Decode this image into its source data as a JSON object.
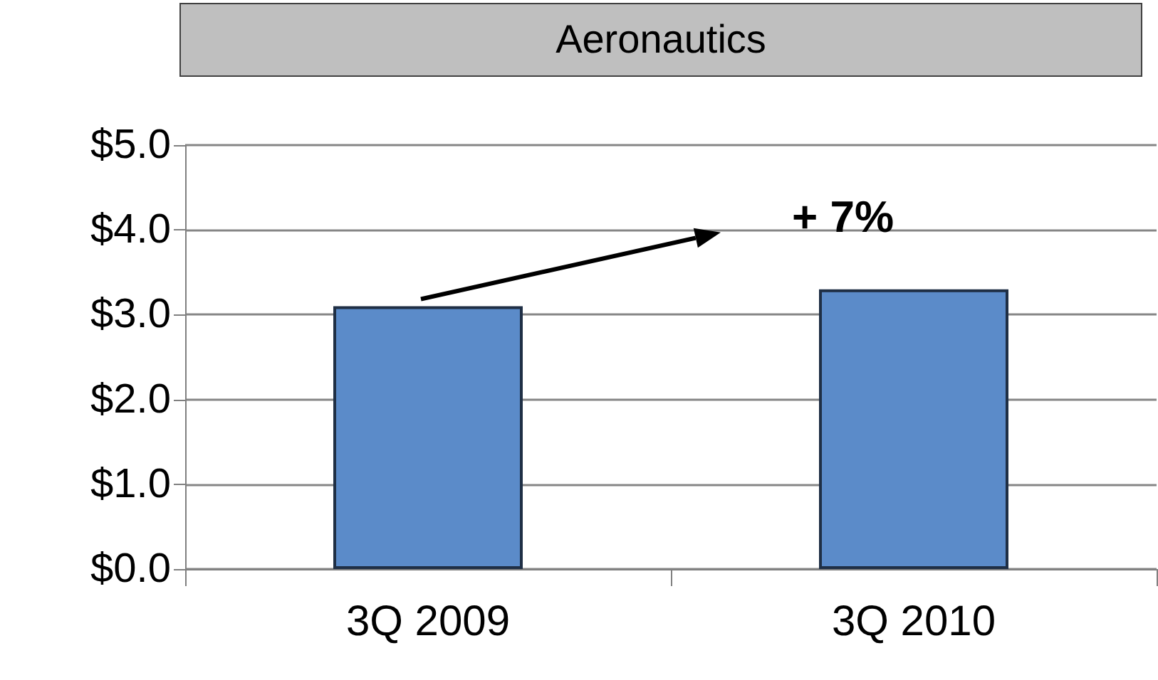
{
  "chart_data": {
    "type": "bar",
    "title": "Aeronautics",
    "categories": [
      "3Q 2009",
      "3Q 2010"
    ],
    "values": [
      3.1,
      3.3
    ],
    "color": "#5b8bc9",
    "ylim": [
      0,
      5
    ],
    "yticks": [
      {
        "value": 0,
        "label": "$0.0"
      },
      {
        "value": 1,
        "label": "$1.0"
      },
      {
        "value": 2,
        "label": "$2.0"
      },
      {
        "value": 3,
        "label": "$3.0"
      },
      {
        "value": 4,
        "label": "$4.0"
      },
      {
        "value": 5,
        "label": "$5.0"
      }
    ],
    "grid": true,
    "annotations": [
      "+ 7%"
    ]
  }
}
